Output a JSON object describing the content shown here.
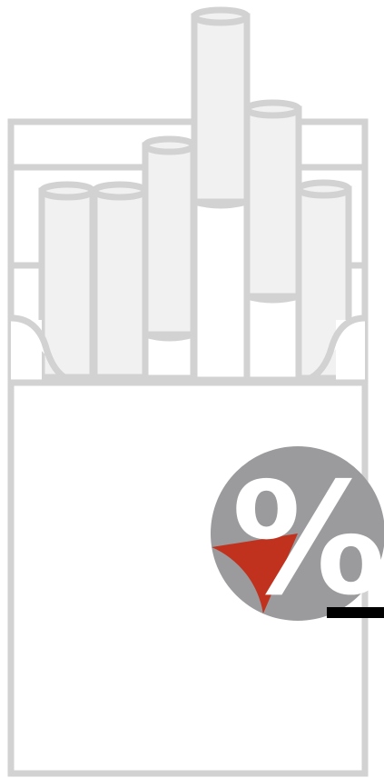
{
  "illustration": {
    "subject": "cigarette-pack-icon"
  },
  "badge": {
    "symbol": "%",
    "share": 0.16
  },
  "colors": {
    "outline": "#d2d2d2",
    "cigarette_fill": "#f1f1f1",
    "background": "#ffffff",
    "badge_gray": "#9b9b9d",
    "badge_red": "#c0321d",
    "symbol": "#ffffff",
    "underline": "#000000"
  }
}
